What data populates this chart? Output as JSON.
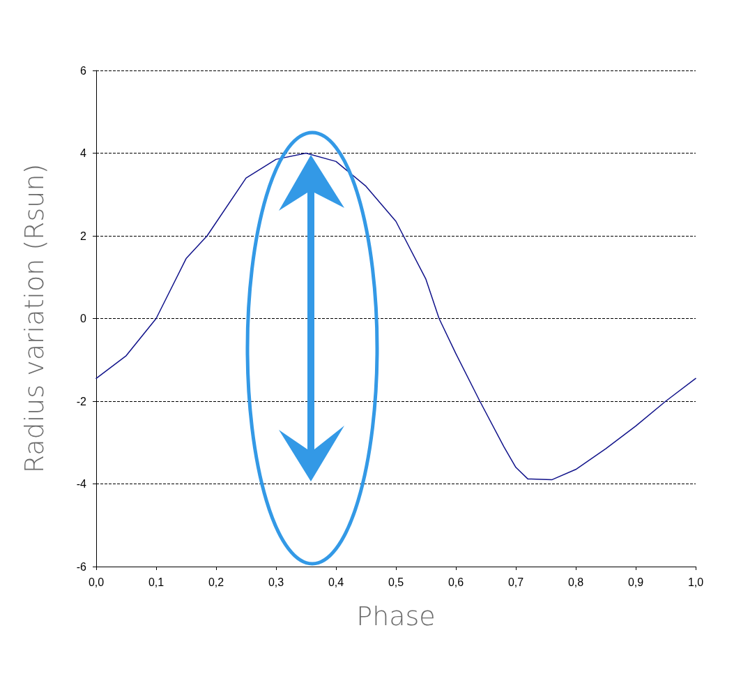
{
  "chart_data": {
    "type": "line",
    "xlabel": "Phase",
    "ylabel": "Radius variation (Rsun)",
    "x": [
      0,
      0.05,
      0.1,
      0.15,
      0.185,
      0.25,
      0.3,
      0.35,
      0.4,
      0.45,
      0.5,
      0.55,
      0.572,
      0.6,
      0.64,
      0.68,
      0.7,
      0.72,
      0.76,
      0.8,
      0.85,
      0.9,
      0.95,
      1
    ],
    "series": [
      {
        "color": "#10128a",
        "values": [
          -1.45,
          -0.9,
          0,
          1.45,
          2,
          3.4,
          3.85,
          4,
          3.8,
          3.2,
          2.35,
          0.95,
          0,
          -0.85,
          -2,
          -3.1,
          -3.6,
          -3.88,
          -3.9,
          -3.65,
          -3.15,
          -2.6,
          -2,
          -1.45
        ]
      }
    ],
    "xlim": [
      0,
      1
    ],
    "xticks": [
      {
        "value": 0,
        "label": "0,0"
      },
      {
        "value": 0.1,
        "label": "0,1"
      },
      {
        "value": 0.2,
        "label": "0,2"
      },
      {
        "value": 0.3,
        "label": "0,3"
      },
      {
        "value": 0.4,
        "label": "0,4"
      },
      {
        "value": 0.5,
        "label": "0,5"
      },
      {
        "value": 0.6,
        "label": "0,6"
      },
      {
        "value": 0.7,
        "label": "0,7"
      },
      {
        "value": 0.8,
        "label": "0,8"
      },
      {
        "value": 0.9,
        "label": "0,9"
      },
      {
        "value": 1,
        "label": "1,0"
      }
    ],
    "ylim": [
      -6,
      6
    ],
    "yticks": [
      -6,
      -4,
      -2,
      0,
      2,
      4,
      6
    ],
    "grid": "y",
    "marker": "none",
    "line_style": "solid"
  }
}
